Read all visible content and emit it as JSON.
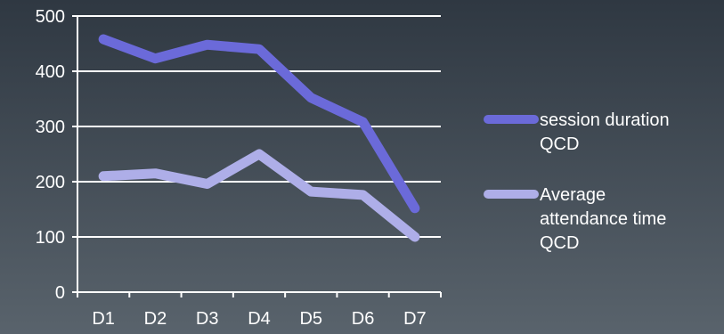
{
  "chart_data": {
    "type": "line",
    "categories": [
      "D1",
      "D2",
      "D3",
      "D4",
      "D5",
      "D6",
      "D7"
    ],
    "series": [
      {
        "name": "session duration QCD",
        "name_lines": [
          "session duration",
          "QCD"
        ],
        "values": [
          458,
          423,
          448,
          440,
          352,
          308,
          152
        ],
        "color": "#6b6ad9"
      },
      {
        "name": "Average attendance time QCD",
        "name_lines": [
          "Average",
          "attendance time",
          "QCD"
        ],
        "values": [
          210,
          215,
          196,
          250,
          182,
          176,
          100
        ],
        "color": "#aeaee8"
      }
    ],
    "y_ticks": [
      "0",
      "100",
      "200",
      "300",
      "400",
      "500"
    ],
    "ylim": [
      0,
      500
    ],
    "grid": true,
    "legend": "right",
    "title": "",
    "xlabel": "",
    "ylabel": ""
  }
}
